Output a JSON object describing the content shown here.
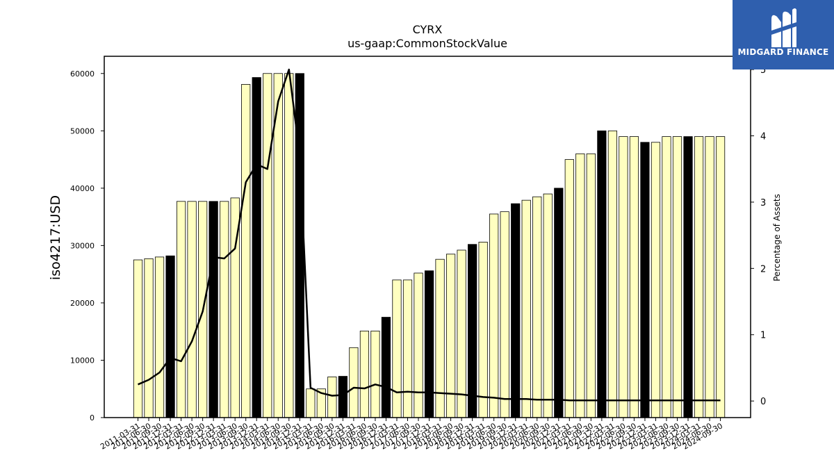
{
  "brand": {
    "name": "MIDGARD FINANCE",
    "logo_icon": "midgard-m-icon",
    "bg_color": "#2f5fae"
  },
  "colors": {
    "bar_normal": "#ffffc0",
    "bar_highlight": "#000000",
    "line": "#000000"
  },
  "chart_data": {
    "type": "bar",
    "title": "CYRX",
    "subtitle": "us-gaap:CommonStockValue",
    "ylabel": "iso4217:USD",
    "y2label": "Percentage of Assets",
    "ylim": [
      0,
      63000
    ],
    "y2lim": [
      -0.25,
      5.2
    ],
    "yticks": [
      0,
      10000,
      20000,
      30000,
      40000,
      50000,
      60000
    ],
    "y2ticks": [
      0,
      1,
      2,
      3,
      4,
      5
    ],
    "grid": false,
    "categories": [
      "2011-03-31",
      "2011-06-30",
      "2011-09-30",
      "2011-12-31",
      "2012-03-31",
      "2012-06-30",
      "2012-09-30",
      "2012-12-31",
      "2013-03-31",
      "2013-06-30",
      "2013-09-30",
      "2013-12-31",
      "2014-03-31",
      "2014-06-30",
      "2014-09-30",
      "2014-12-31",
      "2015-03-31",
      "2015-06-30",
      "2015-09-30",
      "2015-12-31",
      "2016-03-31",
      "2016-06-30",
      "2016-09-30",
      "2016-12-31",
      "2017-03-31",
      "2017-06-30",
      "2017-09-30",
      "2017-12-31",
      "2018-03-31",
      "2018-06-30",
      "2018-09-30",
      "2018-12-31",
      "2019-03-31",
      "2019-06-30",
      "2019-09-30",
      "2019-12-31",
      "2020-03-31",
      "2020-06-30",
      "2020-09-30",
      "2020-12-31",
      "2021-03-31",
      "2021-06-30",
      "2021-09-30",
      "2021-12-31",
      "2022-03-31",
      "2022-06-30",
      "2022-09-30",
      "2022-12-31",
      "2023-03-31",
      "2023-06-30",
      "2023-09-30",
      "2023-12-31",
      "2024-03-31",
      "2024-06-30",
      "2024-09-30"
    ],
    "series": [
      {
        "type": "bar",
        "values": [
          27500,
          27700,
          28000,
          28200,
          37700,
          37700,
          37700,
          37700,
          37700,
          38300,
          58100,
          59300,
          60000,
          60000,
          60000,
          60000,
          5000,
          5000,
          7100,
          7200,
          12200,
          15100,
          15100,
          17500,
          24000,
          24000,
          25200,
          25600,
          27600,
          28500,
          29200,
          30200,
          30600,
          35500,
          35900,
          37300,
          37900,
          38500,
          39000,
          40000,
          45000,
          46000,
          46000,
          50000,
          50000,
          49000,
          49000,
          48000,
          48000,
          49000,
          49000,
          49000,
          49000,
          49000,
          49000
        ],
        "highlight": [
          false,
          false,
          false,
          true,
          false,
          false,
          false,
          true,
          false,
          false,
          false,
          true,
          false,
          false,
          false,
          true,
          false,
          false,
          false,
          true,
          false,
          false,
          false,
          true,
          false,
          false,
          false,
          true,
          false,
          false,
          false,
          true,
          false,
          false,
          false,
          true,
          false,
          false,
          false,
          true,
          false,
          false,
          false,
          true,
          false,
          false,
          false,
          true,
          false,
          false,
          false,
          true,
          false,
          false,
          false
        ]
      },
      {
        "type": "line",
        "axis": "right",
        "values": [
          0.25,
          0.32,
          0.43,
          0.65,
          0.6,
          0.9,
          1.35,
          2.17,
          2.15,
          2.3,
          3.3,
          3.57,
          3.5,
          4.52,
          5.0,
          3.7,
          0.2,
          0.12,
          0.08,
          0.09,
          0.2,
          0.19,
          0.25,
          0.21,
          0.13,
          0.14,
          0.13,
          0.13,
          0.12,
          0.11,
          0.1,
          0.08,
          0.06,
          0.05,
          0.03,
          0.03,
          0.03,
          0.02,
          0.02,
          0.02,
          0.01,
          0.01,
          0.01,
          0.01,
          0.01,
          0.01,
          0.01,
          0.01,
          0.01,
          0.01,
          0.01,
          0.01,
          0.01,
          0.01,
          0.01
        ]
      }
    ]
  }
}
